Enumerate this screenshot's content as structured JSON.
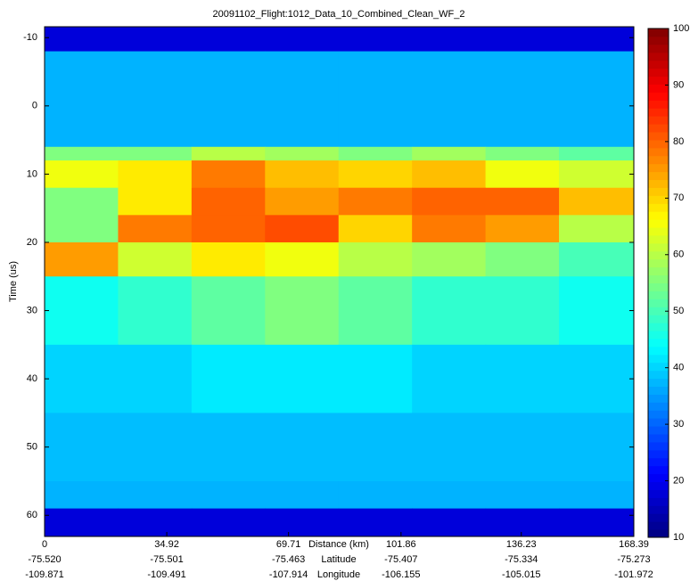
{
  "chart_data": {
    "type": "heatmap",
    "title": "20091102_Flight:1012_Data_10_Combined_Clean_WF_2",
    "xlabel": "Distance (km)",
    "x2label": "Latitude",
    "x3label": "Longitude",
    "ylabel": "Time (us)",
    "xlim": [
      0,
      168.39
    ],
    "xticks": [
      0,
      34.92,
      69.71,
      101.86,
      136.23,
      168.39
    ],
    "latitude_labels": [
      "-75.520",
      "-75.501",
      "-75.463",
      "-75.407",
      "-75.334",
      "-75.273"
    ],
    "longitude_labels": [
      "-109.871",
      "-109.491",
      "-107.914",
      "-106.155",
      "-105.015",
      "-101.972"
    ],
    "ylim": [
      -11.6,
      63.1
    ],
    "y_reversed": true,
    "yticks": [
      -10,
      0,
      10,
      20,
      30,
      40,
      50,
      60
    ],
    "colormap": "jet",
    "clim": [
      10,
      100
    ],
    "cticks": [
      10,
      20,
      30,
      40,
      50,
      60,
      70,
      80,
      90,
      100
    ],
    "x_edges": [
      0,
      21,
      42,
      63,
      84,
      105,
      126,
      147,
      168.39
    ],
    "y_edges": [
      -11.6,
      -8,
      6,
      8,
      12,
      16,
      20,
      25,
      35,
      45,
      55,
      59,
      63.1
    ],
    "z": [
      [
        18,
        18,
        18,
        18,
        18,
        18,
        18,
        18
      ],
      [
        37,
        37,
        37,
        37,
        37,
        37,
        37,
        37
      ],
      [
        55,
        55,
        60,
        58,
        55,
        58,
        55,
        52
      ],
      [
        65,
        68,
        78,
        72,
        70,
        72,
        65,
        62
      ],
      [
        55,
        68,
        80,
        75,
        78,
        80,
        80,
        72
      ],
      [
        55,
        78,
        80,
        82,
        70,
        78,
        75,
        60
      ],
      [
        75,
        62,
        68,
        65,
        60,
        58,
        55,
        50
      ],
      [
        45,
        48,
        52,
        55,
        52,
        48,
        48,
        45
      ],
      [
        40,
        40,
        42,
        42,
        42,
        40,
        40,
        40
      ],
      [
        38,
        38,
        38,
        38,
        38,
        38,
        38,
        38
      ],
      [
        37,
        37,
        37,
        37,
        37,
        37,
        37,
        37
      ],
      [
        18,
        18,
        18,
        18,
        18,
        18,
        18,
        18
      ]
    ]
  }
}
